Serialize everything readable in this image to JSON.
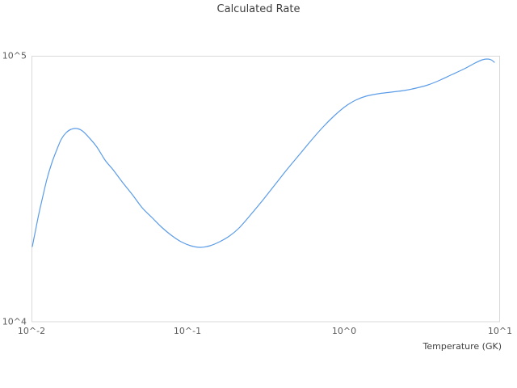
{
  "chart_data": {
    "type": "line",
    "title": "Calculated Rate",
    "xlabel": "Temperature (GK)",
    "ylabel": "",
    "x_scale": "log",
    "y_scale": "log",
    "xlim_log10": [
      -2,
      1
    ],
    "ylim_log10": [
      4,
      5
    ],
    "grid": false,
    "legend": "none",
    "x_ticks": [
      {
        "label": "10^-2",
        "value": 0.01
      },
      {
        "label": "10^-1",
        "value": 0.1
      },
      {
        "label": "10^0",
        "value": 1
      },
      {
        "label": "10^1",
        "value": 10
      }
    ],
    "y_ticks": [
      {
        "label": "10^4",
        "value": 10000
      },
      {
        "label": "10^5",
        "value": 100000
      }
    ],
    "series": [
      {
        "name": "calculated-rate",
        "color": "#5b9ce8",
        "x": [
          0.01012,
          0.01061,
          0.01113,
          0.01182,
          0.01254,
          0.01347,
          0.01446,
          0.01554,
          0.01669,
          0.01792,
          0.01948,
          0.02117,
          0.02329,
          0.02624,
          0.02956,
          0.03329,
          0.03841,
          0.04431,
          0.05113,
          0.05897,
          0.06802,
          0.07848,
          0.09055,
          0.10446,
          0.12051,
          0.13902,
          0.16041,
          0.18506,
          0.21343,
          0.25224,
          0.30158,
          0.36057,
          0.431,
          0.51528,
          0.61616,
          0.73643,
          0.87025,
          1.016,
          1.186,
          1.385,
          1.656,
          2.004,
          2.424,
          2.897,
          3.464,
          4.142,
          4.953,
          5.921,
          6.912,
          7.695,
          8.264,
          8.772,
          9.199
        ],
        "y": [
          19169,
          22057,
          25367,
          29596,
          34266,
          39420,
          44094,
          48644,
          51445,
          52903,
          53274,
          52170,
          49329,
          45343,
          40541,
          37276,
          33322,
          30014,
          26826,
          24668,
          22683,
          21146,
          19997,
          19307,
          19038,
          19307,
          19997,
          20999,
          22525,
          25190,
          28580,
          32631,
          37276,
          42276,
          47969,
          54026,
          59566,
          64343,
          68040,
          70469,
          71969,
          72984,
          74013,
          75586,
          77729,
          81063,
          85131,
          89406,
          93898,
          96563,
          97240,
          96563,
          94558
        ]
      }
    ],
    "colors": {
      "line": "#5b9ce8",
      "plot_border": "#d9d9d9",
      "title_text": "#3d3d3d",
      "tick_text": "#5c5c5c",
      "axis_title_text": "#3f3f3f",
      "background": "#ffffff"
    }
  }
}
